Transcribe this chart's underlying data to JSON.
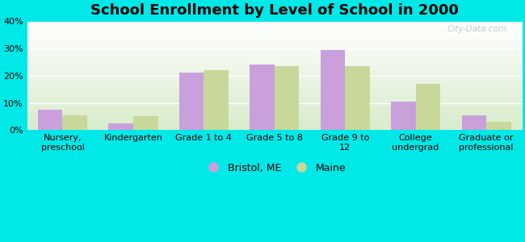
{
  "title": "School Enrollment by Level of School in 2000",
  "categories": [
    "Nursery,\npreschool",
    "Kindergarten",
    "Grade 1 to 4",
    "Grade 5 to 8",
    "Grade 9 to\n12",
    "College\nundergrad",
    "Graduate or\nprofessional"
  ],
  "bristol_values": [
    7.5,
    2.5,
    21.0,
    24.0,
    29.5,
    10.5,
    5.5
  ],
  "maine_values": [
    5.5,
    5.0,
    22.0,
    23.5,
    23.5,
    17.0,
    3.0
  ],
  "bristol_color": "#c9a0dc",
  "maine_color": "#c8d89a",
  "background_color": "#00e8e8",
  "grad_top": "#ffffff",
  "grad_bottom": "#d8edcc",
  "ylim": [
    0,
    40
  ],
  "yticks": [
    0,
    10,
    20,
    30,
    40
  ],
  "legend_bristol": "Bristol, ME",
  "legend_maine": "Maine",
  "bar_width": 0.35,
  "watermark": "City-Data.com",
  "title_fontsize": 13,
  "tick_fontsize": 8,
  "legend_fontsize": 9
}
